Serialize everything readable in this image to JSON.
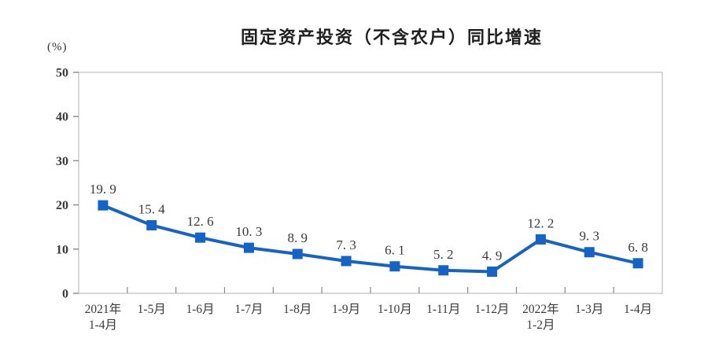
{
  "chart_data": {
    "type": "line",
    "title": "固定资产投资（不含农户）同比增速",
    "ylabel": "(%)",
    "ylim": [
      0,
      50
    ],
    "yticks": [
      0,
      10,
      20,
      30,
      40,
      50
    ],
    "grid": false,
    "legend_position": "none",
    "categories": [
      [
        "2021年",
        "1-4月"
      ],
      [
        "1-5月"
      ],
      [
        "1-6月"
      ],
      [
        "1-7月"
      ],
      [
        "1-8月"
      ],
      [
        "1-9月"
      ],
      [
        "1-10月"
      ],
      [
        "1-11月"
      ],
      [
        "1-12月"
      ],
      [
        "2022年",
        "1-2月"
      ],
      [
        "1-3月"
      ],
      [
        "1-4月"
      ]
    ],
    "values": [
      19.9,
      15.4,
      12.6,
      10.3,
      8.9,
      7.3,
      6.1,
      5.2,
      4.9,
      12.2,
      9.3,
      6.8
    ],
    "point_labels": [
      "19. 9",
      "15. 4",
      "12. 6",
      "10. 3",
      "8. 9",
      "7. 3",
      "6. 1",
      "5. 2",
      "4. 9",
      "12. 2",
      "9. 3",
      "6. 8"
    ],
    "colors": {
      "line": "#1464c8",
      "marker": "#1464c8",
      "plot_border": "#c2c2c2",
      "tick": "#8a8a8a",
      "label_text": "#3a3a3a",
      "title_text": "#1f1f1f"
    }
  }
}
